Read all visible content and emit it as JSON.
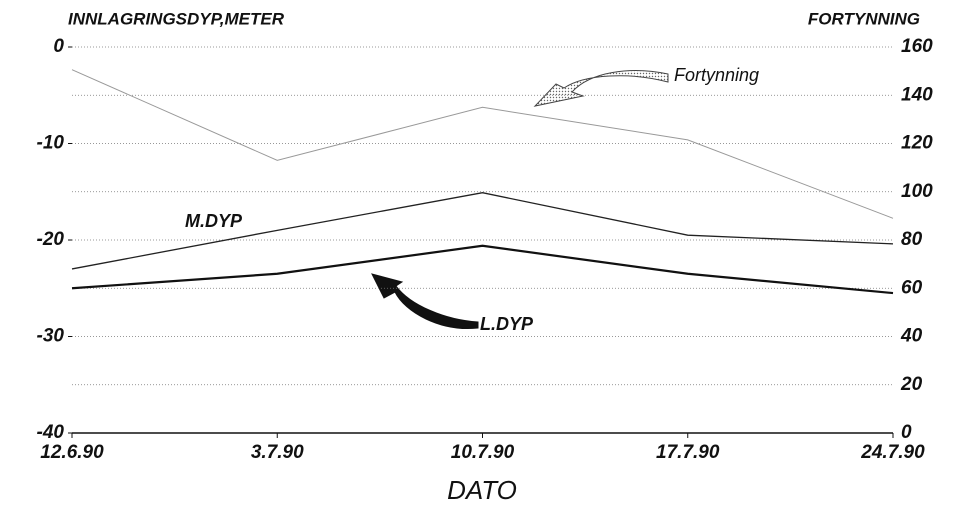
{
  "chart_data": {
    "type": "line",
    "y_label": "INNLAGRINGSDYP,METER",
    "y2_label": "FORTYNNING",
    "x_label": "DATO",
    "categories": [
      "12.6.90",
      "3.7.90",
      "10.7.90",
      "17.7.90",
      "24.7.90"
    ],
    "ylim": [
      -40,
      0
    ],
    "yticks": [
      -40,
      -30,
      -20,
      -10,
      0
    ],
    "y2lim": [
      0,
      160
    ],
    "y2ticks": [
      0,
      20,
      40,
      60,
      80,
      100,
      120,
      140,
      160
    ],
    "grid": true,
    "series": [
      {
        "name": "M.DYP",
        "color": "#222222",
        "width": 1.3,
        "values": [
          -23.0,
          -19.0,
          -15.1,
          -19.5,
          -20.4
        ]
      },
      {
        "name": "L.DYP",
        "color": "#111111",
        "width": 2.2,
        "values": [
          -25.0,
          -23.5,
          -20.6,
          -23.5,
          -25.5
        ]
      },
      {
        "name": "Fortynning",
        "color": "#999999",
        "width": 1,
        "axis": "y2",
        "values": [
          150.6,
          113,
          135,
          121.5,
          89
        ]
      }
    ]
  }
}
